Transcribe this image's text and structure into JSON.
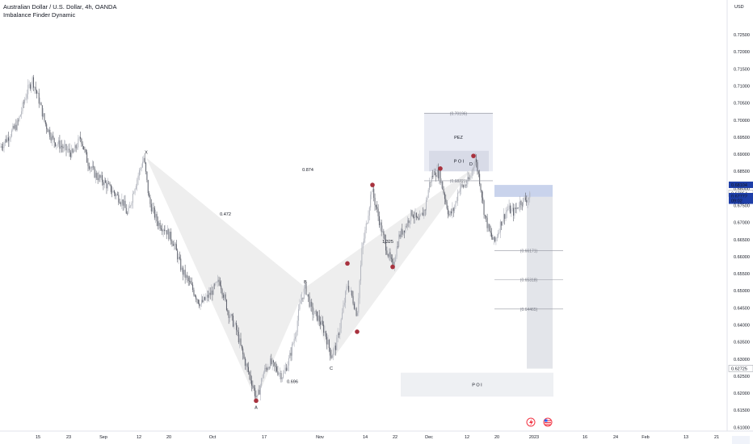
{
  "header": {
    "title": "Australian Dollar / U.S. Dollar, 4h, OANDA",
    "indicator": "Imbalance Finder Dynamic"
  },
  "axis": {
    "currency": "USD"
  },
  "chart_data": {
    "type": "candlestick",
    "title": "Australian Dollar / U.S. Dollar, 4h, OANDA",
    "ylim": [
      0.6115,
      0.7295
    ],
    "y_ticks": [
      "0.72500",
      "0.72000",
      "0.71500",
      "0.71000",
      "0.70500",
      "0.70000",
      "0.69500",
      "0.69000",
      "0.68500",
      "0.68000",
      "0.67500",
      "0.67000",
      "0.66500",
      "0.66000",
      "0.65500",
      "0.65000",
      "0.64500",
      "0.64000",
      "0.63500",
      "0.63000",
      "0.62500",
      "0.62000",
      "0.61500",
      "0.61000"
    ],
    "x_ticks": [
      {
        "label": "15",
        "px": 47
      },
      {
        "label": "23",
        "px": 85
      },
      {
        "label": "Sep",
        "px": 128
      },
      {
        "label": "12",
        "px": 172
      },
      {
        "label": "20",
        "px": 209
      },
      {
        "label": "Oct",
        "px": 263
      },
      {
        "label": "17",
        "px": 327
      },
      {
        "label": "Nov",
        "px": 396
      },
      {
        "label": "14",
        "px": 452
      },
      {
        "label": "22",
        "px": 489
      },
      {
        "label": "Dec",
        "px": 531
      },
      {
        "label": "12",
        "px": 578
      },
      {
        "label": "20",
        "px": 615
      },
      {
        "label": "2023",
        "px": 661
      },
      {
        "label": "16",
        "px": 724
      },
      {
        "label": "24",
        "px": 762
      },
      {
        "label": "Feb",
        "px": 799
      },
      {
        "label": "13",
        "px": 849
      },
      {
        "label": "21",
        "px": 887
      }
    ],
    "price_path": [
      [
        0,
        0.692
      ],
      [
        10,
        0.695
      ],
      [
        22,
        0.699
      ],
      [
        33,
        0.708
      ],
      [
        40,
        0.712
      ],
      [
        48,
        0.706
      ],
      [
        56,
        0.699
      ],
      [
        66,
        0.694
      ],
      [
        78,
        0.692
      ],
      [
        90,
        0.69
      ],
      [
        100,
        0.695
      ],
      [
        108,
        0.688
      ],
      [
        118,
        0.684
      ],
      [
        128,
        0.682
      ],
      [
        140,
        0.679
      ],
      [
        152,
        0.676
      ],
      [
        158,
        0.672
      ],
      [
        166,
        0.68
      ],
      [
        178,
        0.689
      ],
      [
        185,
        0.676
      ],
      [
        195,
        0.67
      ],
      [
        205,
        0.668
      ],
      [
        215,
        0.664
      ],
      [
        225,
        0.656
      ],
      [
        235,
        0.652
      ],
      [
        248,
        0.646
      ],
      [
        260,
        0.649
      ],
      [
        272,
        0.653
      ],
      [
        282,
        0.644
      ],
      [
        292,
        0.639
      ],
      [
        302,
        0.63
      ],
      [
        312,
        0.623
      ],
      [
        318,
        0.618
      ],
      [
        326,
        0.626
      ],
      [
        334,
        0.629
      ],
      [
        342,
        0.627
      ],
      [
        350,
        0.625
      ],
      [
        358,
        0.63
      ],
      [
        366,
        0.638
      ],
      [
        372,
        0.647
      ],
      [
        378,
        0.651
      ],
      [
        386,
        0.644
      ],
      [
        394,
        0.642
      ],
      [
        402,
        0.638
      ],
      [
        410,
        0.631
      ],
      [
        416,
        0.634
      ],
      [
        422,
        0.641
      ],
      [
        430,
        0.652
      ],
      [
        436,
        0.648
      ],
      [
        442,
        0.643
      ],
      [
        448,
        0.662
      ],
      [
        454,
        0.67
      ],
      [
        460,
        0.68
      ],
      [
        466,
        0.674
      ],
      [
        472,
        0.668
      ],
      [
        480,
        0.661
      ],
      [
        486,
        0.657
      ],
      [
        494,
        0.666
      ],
      [
        502,
        0.669
      ],
      [
        510,
        0.673
      ],
      [
        518,
        0.67
      ],
      [
        526,
        0.674
      ],
      [
        532,
        0.682
      ],
      [
        538,
        0.685
      ],
      [
        544,
        0.684
      ],
      [
        550,
        0.678
      ],
      [
        556,
        0.672
      ],
      [
        562,
        0.674
      ],
      [
        568,
        0.68
      ],
      [
        576,
        0.681
      ],
      [
        582,
        0.683
      ],
      [
        588,
        0.689
      ],
      [
        594,
        0.682
      ],
      [
        600,
        0.672
      ],
      [
        606,
        0.667
      ],
      [
        612,
        0.664
      ],
      [
        620,
        0.67
      ],
      [
        628,
        0.674
      ],
      [
        636,
        0.673
      ],
      [
        644,
        0.676
      ],
      [
        652,
        0.677
      ],
      [
        657,
        0.6777
      ]
    ],
    "pattern_points": [
      {
        "label": "X",
        "px": 181,
        "price": 0.689
      },
      {
        "label": "A",
        "px": 317,
        "price": 0.618
      },
      {
        "label": "B",
        "px": 378,
        "price": 0.651
      },
      {
        "label": "C",
        "px": 410,
        "price": 0.6295
      },
      {
        "label": "D",
        "px": 583,
        "price": 0.6855
      }
    ],
    "ratios": [
      {
        "text": "0.472",
        "px": 279,
        "price": 0.672
      },
      {
        "text": "0.874",
        "px": 381,
        "price": 0.685
      },
      {
        "text": "0.696",
        "px": 362,
        "price": 0.623
      },
      {
        "text": "1.325",
        "px": 480,
        "price": 0.664
      }
    ],
    "fib_levels": [
      {
        "text": "(0.70196)",
        "price": 0.70196,
        "x0": 525,
        "x1": 610
      },
      {
        "text": "(0.68221)",
        "price": 0.68221,
        "x0": 525,
        "x1": 610
      },
      {
        "text": "(0.66171)",
        "price": 0.66171,
        "x0": 612,
        "x1": 697
      },
      {
        "text": "(0.65318)",
        "price": 0.65318,
        "x0": 612,
        "x1": 697
      },
      {
        "text": "(0.64465)",
        "price": 0.64465,
        "x0": 612,
        "x1": 697
      }
    ],
    "zones": [
      {
        "text": "PEZ",
        "price_top": 0.7022,
        "price_bottom": 0.685,
        "x0": 525,
        "x1": 610
      },
      {
        "text": "P O I",
        "price_top": 0.691,
        "price_bottom": 0.685,
        "x0": 531,
        "x1": 605
      },
      {
        "text": "P O I",
        "price_top": 0.626,
        "price_bottom": 0.619,
        "x0": 496,
        "x1": 685
      }
    ],
    "markers": [
      {
        "px": 317,
        "price": 0.6178
      },
      {
        "px": 430,
        "price": 0.658
      },
      {
        "px": 442,
        "price": 0.638
      },
      {
        "px": 461,
        "price": 0.681
      },
      {
        "px": 486,
        "price": 0.657
      },
      {
        "px": 545,
        "price": 0.6858
      },
      {
        "px": 586,
        "price": 0.6895
      }
    ],
    "price_tags": [
      {
        "text": "0.68104",
        "price": 0.68104,
        "color": "#2962ff"
      },
      {
        "text": "0.67854",
        "price": 0.67854,
        "color": "#ffffff"
      },
      {
        "text": "0.67772",
        "price": 0.67772,
        "color": "#2962ff"
      },
      {
        "text": "09:02",
        "price": 0.6764,
        "color": "#2962ff"
      },
      {
        "text": "0.62725",
        "price": 0.62725,
        "color": "#ffffff"
      }
    ]
  }
}
